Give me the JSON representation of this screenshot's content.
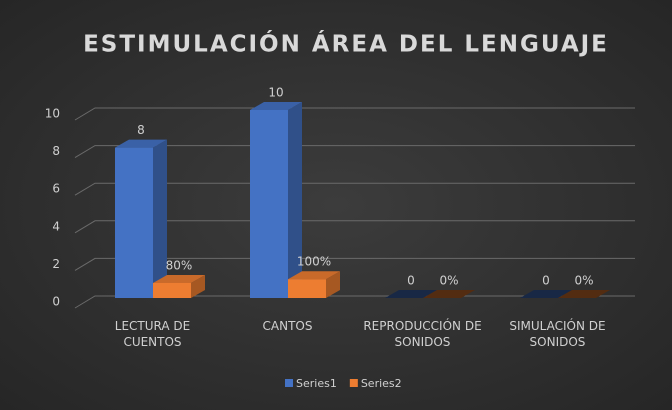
{
  "chart_data": {
    "type": "bar3d",
    "title": "ESTIMULACIÓN ÁREA DEL LENGUAJE",
    "categories": [
      "LECTURA DE CUENTOS",
      "CANTOS",
      "REPRODUCCIÓN DE SONIDOS",
      "SIMULACIÓN DE SONIDOS"
    ],
    "series": [
      {
        "name": "Series1",
        "color": "#4472c4",
        "values": [
          8,
          10,
          0,
          0
        ]
      },
      {
        "name": "Series2",
        "color": "#ed7d31",
        "values": [
          0.8,
          1,
          0,
          0
        ],
        "value_labels": [
          "80%",
          "100%",
          "0%",
          "0%"
        ]
      }
    ],
    "ylim": [
      0,
      10
    ],
    "yticks": [
      0,
      2,
      4,
      6,
      8,
      10
    ],
    "grid": true,
    "legend": "bottom"
  }
}
